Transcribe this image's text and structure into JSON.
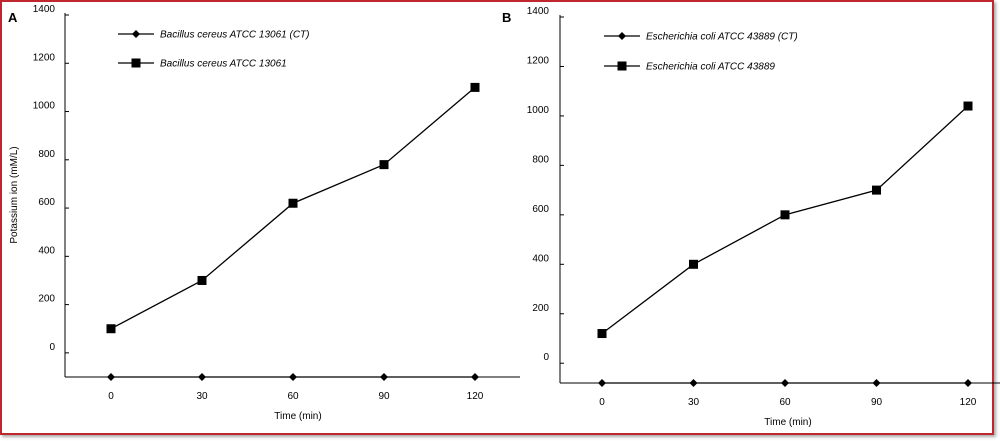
{
  "chart_data": [
    {
      "type": "line",
      "panel_label": "A",
      "xlabel": "Time (min)",
      "ylabel": "Potassium ion (mM/L)",
      "x": [
        0,
        30,
        60,
        90,
        120
      ],
      "x_tick_labels": [
        "0",
        "30",
        "60",
        "90",
        "120"
      ],
      "y_tick_labels": [
        "0",
        "200",
        "400",
        "600",
        "800",
        "1000",
        "1200",
        "1400"
      ],
      "ylim": [
        -100,
        1400
      ],
      "grid": false,
      "legend_position": "top-left",
      "series": [
        {
          "name": "Bacillus cereus ATCC 13061 (CT)",
          "marker": "diamond",
          "values": [
            -100,
            -100,
            -100,
            -100,
            -100
          ]
        },
        {
          "name": "Bacillus cereus ATCC 13061",
          "marker": "square",
          "values": [
            100,
            300,
            620,
            780,
            1100
          ]
        }
      ]
    },
    {
      "type": "line",
      "panel_label": "B",
      "xlabel": "Time (min)",
      "ylabel": "",
      "x": [
        0,
        30,
        60,
        90,
        120
      ],
      "x_tick_labels": [
        "0",
        "30",
        "60",
        "90",
        "120"
      ],
      "y_tick_labels": [
        "0",
        "200",
        "400",
        "600",
        "800",
        "1000",
        "1200",
        "1400"
      ],
      "ylim": [
        -80,
        1400
      ],
      "grid": false,
      "legend_position": "top-left",
      "series": [
        {
          "name": "Escherichia coli ATCC 43889 (CT)",
          "marker": "diamond",
          "values": [
            -80,
            -80,
            -80,
            -80,
            -80
          ]
        },
        {
          "name": "Escherichia coli ATCC 43889",
          "marker": "square",
          "values": [
            120,
            400,
            600,
            700,
            1040
          ]
        }
      ]
    }
  ]
}
